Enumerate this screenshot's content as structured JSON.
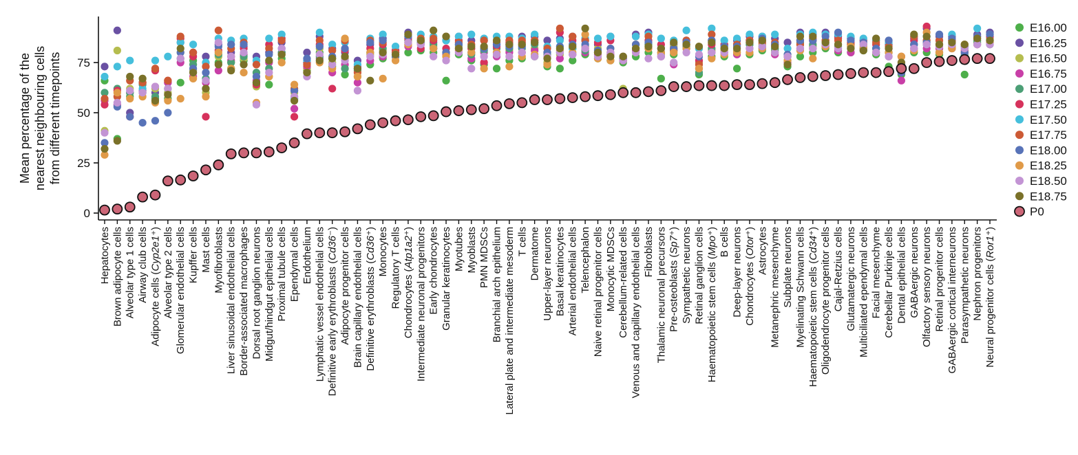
{
  "chart_data": {
    "type": "scatter",
    "ylabel_lines": [
      "Mean percentage of the",
      "nearest neighbouring cells",
      "from different timepoints"
    ],
    "xlabel": "",
    "ylim": [
      0,
      95
    ],
    "yticks": [
      0,
      25,
      50,
      75
    ],
    "grid": false,
    "legend_position": "right",
    "categories": [
      {
        "name": "Hepatocytes"
      },
      {
        "name": "Brown adipocyte cells"
      },
      {
        "name": "Alveolar type 1 cells"
      },
      {
        "name": "Airway club cells"
      },
      {
        "name": "Adipocyte cells (",
        "italic": "Cyp2e1",
        "suffix": "⁺)"
      },
      {
        "name": "Alveolar type 2 cells"
      },
      {
        "name": "Glomerular endothelial cells"
      },
      {
        "name": "Kupffer cells"
      },
      {
        "name": "Mast cells"
      },
      {
        "name": "Myofibroblasts"
      },
      {
        "name": "Liver sinusoidal endothelial cells"
      },
      {
        "name": "Border-associated macrophages"
      },
      {
        "name": "Dorsal root ganglion neurons"
      },
      {
        "name": "Midgut/hindgut epithelial cells"
      },
      {
        "name": "Proximal tubule cells"
      },
      {
        "name": "Ependymal cells"
      },
      {
        "name": "Endothelium"
      },
      {
        "name": "Lymphatic vessel endothelial cells"
      },
      {
        "name": "Definitive early erythroblasts (",
        "italic": "Cd36",
        "suffix": "⁻)"
      },
      {
        "name": "Adipocyte progenitor cells"
      },
      {
        "name": "Brain capillary endothelial cells"
      },
      {
        "name": "Definitive erythroblasts (",
        "italic": "Cd36",
        "suffix": "⁺)"
      },
      {
        "name": "Monocytes"
      },
      {
        "name": "Regulatory T cells"
      },
      {
        "name": "Chondrocytes (",
        "italic": "Atp1a2",
        "suffix": "⁺)"
      },
      {
        "name": "Intermediate neuronal progenitors"
      },
      {
        "name": "Early chondrocytes"
      },
      {
        "name": "Granular keratinocytes"
      },
      {
        "name": "Myotubes"
      },
      {
        "name": "Myoblasts"
      },
      {
        "name": "PMN MDSCs"
      },
      {
        "name": "Branchial arch epithelium"
      },
      {
        "name": "Lateral plate and intermediate mesoderm"
      },
      {
        "name": "T cells"
      },
      {
        "name": "Dermatome"
      },
      {
        "name": "Upper-layer neurons"
      },
      {
        "name": "Basal keratinocytes"
      },
      {
        "name": "Arterial endothelial cells"
      },
      {
        "name": "Telencephalon"
      },
      {
        "name": "Naive retinal progenitor cells"
      },
      {
        "name": "Monocytic MDSCs"
      },
      {
        "name": "Cerebellum-related cells"
      },
      {
        "name": "Venous and capillary endothelial cells"
      },
      {
        "name": "Fibroblasts"
      },
      {
        "name": "Thalamic neuronal precursors"
      },
      {
        "name": "Pre-osteoblasts (",
        "italic": "Sp7",
        "suffix": "⁺)"
      },
      {
        "name": "Sympathetic neurons"
      },
      {
        "name": "Retinal ganglion cells"
      },
      {
        "name": "Haematopoietic stem cells (",
        "italic": "Mpo",
        "suffix": "⁺)"
      },
      {
        "name": "B cells"
      },
      {
        "name": "Deep-layer neurons"
      },
      {
        "name": "Chondrocytes (",
        "italic": "Otor",
        "suffix": "⁺)"
      },
      {
        "name": "Astrocytes"
      },
      {
        "name": "Metanephric mesenchyme"
      },
      {
        "name": "Subplate neurons"
      },
      {
        "name": "Myelinating Schwann cells"
      },
      {
        "name": "Haematopoietic stem cells (",
        "italic": "Cd34",
        "suffix": "⁺)"
      },
      {
        "name": "Oligodendrocyte progenitor cells"
      },
      {
        "name": "Cajal-Retzius cells"
      },
      {
        "name": "Glutamatergic neurons"
      },
      {
        "name": "Multiciliated ependymal cells"
      },
      {
        "name": "Facial mesenchyme"
      },
      {
        "name": "Cerebellar Purkinje cells"
      },
      {
        "name": "Dental epithelial cells"
      },
      {
        "name": "GABAergic neurons"
      },
      {
        "name": "Olfactory sensory neurons"
      },
      {
        "name": "Retinal progenitor cells"
      },
      {
        "name": "GABAergic cortical interneurons"
      },
      {
        "name": "Parasympathetic neurons"
      },
      {
        "name": "Nephron progenitors"
      },
      {
        "name": "Neural progenitor cells (",
        "italic": "Ror1",
        "suffix": "⁺)"
      }
    ],
    "p0_values": [
      1.5,
      2,
      3,
      8,
      9,
      16,
      16.5,
      18.5,
      21.5,
      24,
      29.5,
      30,
      30,
      30.5,
      32.5,
      35,
      39.5,
      40,
      40,
      40.5,
      42,
      44,
      45,
      46,
      46.5,
      48,
      48.5,
      50.5,
      51,
      51.5,
      52,
      53.5,
      54.5,
      55,
      56.5,
      56.5,
      57,
      57.5,
      58,
      58.5,
      59,
      60,
      60,
      60.5,
      61,
      63,
      63,
      63.5,
      63.5,
      63.5,
      64,
      64,
      64.5,
      65,
      66.5,
      67.5,
      68,
      68.5,
      69,
      69.5,
      70,
      70,
      70.5,
      72,
      72,
      75,
      75.5,
      76,
      76.5,
      77,
      77
    ],
    "series": [
      {
        "name": "E16.00",
        "color": "#4daf4a"
      },
      {
        "name": "E16.25",
        "color": "#6a51a3"
      },
      {
        "name": "E16.50",
        "color": "#b5bd4f"
      },
      {
        "name": "E16.75",
        "color": "#c83fa7"
      },
      {
        "name": "E17.00",
        "color": "#4c9f76"
      },
      {
        "name": "E17.25",
        "color": "#d6325c"
      },
      {
        "name": "E17.50",
        "color": "#45bfdc"
      },
      {
        "name": "E17.75",
        "color": "#cc5a35"
      },
      {
        "name": "E18.00",
        "color": "#5873b8"
      },
      {
        "name": "E18.25",
        "color": "#e09a48"
      },
      {
        "name": "E18.50",
        "color": "#c394d4"
      },
      {
        "name": "E18.75",
        "color": "#7a7129"
      },
      {
        "name": "P0",
        "color": "#cc6677"
      }
    ],
    "timepoint_values": [
      [
        66,
        73,
        41,
        56,
        60,
        54,
        68,
        57,
        35,
        29,
        40,
        32
      ],
      [
        37,
        91,
        81,
        54,
        62,
        61,
        73,
        58,
        53,
        60,
        55,
        36
      ],
      [
        58,
        50,
        62,
        60,
        60,
        48,
        76,
        66,
        48,
        57,
        61,
        68
      ],
      [
        65,
        60,
        67,
        61,
        64,
        65,
        62,
        65,
        45,
        58,
        60,
        67
      ],
      [
        57,
        60,
        62,
        63,
        58,
        71,
        76,
        72,
        46,
        55,
        63,
        56
      ],
      [
        57,
        65,
        60,
        65,
        62,
        66,
        78,
        66,
        50,
        56,
        62,
        59
      ],
      [
        65,
        85,
        80,
        75,
        77,
        87,
        85,
        88,
        80,
        57,
        77,
        82
      ],
      [
        76,
        80,
        71,
        68,
        74,
        78,
        84,
        80,
        72,
        67,
        70,
        70
      ],
      [
        62,
        78,
        60,
        65,
        67,
        48,
        75,
        73,
        70,
        58,
        66,
        62
      ],
      [
        75,
        84,
        78,
        71,
        79,
        81,
        87,
        91,
        83,
        80,
        85,
        74
      ],
      [
        72,
        80,
        75,
        76,
        75,
        78,
        86,
        82,
        84,
        72,
        78,
        71
      ],
      [
        76,
        83,
        77,
        79,
        78,
        82,
        87,
        85,
        84,
        70,
        80,
        74
      ],
      [
        65,
        78,
        63,
        66,
        70,
        64,
        76,
        74,
        68,
        55,
        54,
        65
      ],
      [
        64,
        80,
        68,
        75,
        72,
        84,
        87,
        82,
        79,
        68,
        70,
        76
      ],
      [
        77,
        85,
        79,
        80,
        80,
        87,
        89,
        86,
        82,
        75,
        82,
        79
      ],
      [
        57,
        61,
        60,
        52,
        58,
        48,
        57,
        62,
        61,
        64,
        58,
        56
      ],
      [
        71,
        80,
        72,
        73,
        75,
        75,
        76,
        74,
        77,
        70,
        68,
        70
      ],
      [
        80,
        88,
        82,
        77,
        78,
        84,
        90,
        86,
        83,
        75,
        79,
        76
      ],
      [
        73,
        82,
        75,
        70,
        77,
        62,
        84,
        81,
        78,
        72,
        74,
        77
      ],
      [
        69,
        80,
        77,
        74,
        72,
        81,
        85,
        86,
        82,
        87,
        76,
        78
      ],
      [
        72,
        76,
        68,
        65,
        71,
        73,
        74,
        70,
        72,
        68,
        61,
        72
      ],
      [
        74,
        84,
        79,
        76,
        80,
        82,
        87,
        86,
        85,
        80,
        78,
        66
      ],
      [
        77,
        87,
        81,
        78,
        82,
        84,
        89,
        85,
        86,
        67,
        79,
        80
      ],
      [
        78,
        81,
        79,
        80,
        80,
        81,
        83,
        80,
        78,
        76,
        79,
        79
      ],
      [
        80,
        90,
        84,
        83,
        86,
        87,
        88,
        85,
        88,
        84,
        85,
        89
      ],
      [
        81,
        85,
        85,
        84,
        86,
        82,
        89,
        87,
        85,
        86,
        84,
        86
      ],
      [
        80,
        85,
        83,
        82,
        84,
        86,
        88,
        87,
        82,
        82,
        78,
        91
      ],
      [
        66,
        86,
        80,
        79,
        80,
        82,
        86,
        88,
        80,
        78,
        76,
        88
      ],
      [
        79,
        88,
        83,
        82,
        84,
        86,
        88,
        85,
        84,
        81,
        80,
        82
      ],
      [
        76,
        86,
        82,
        77,
        79,
        82,
        89,
        84,
        80,
        80,
        72,
        83
      ],
      [
        74,
        86,
        82,
        80,
        81,
        75,
        87,
        86,
        82,
        72,
        78,
        83
      ],
      [
        72,
        84,
        80,
        78,
        82,
        83,
        88,
        85,
        84,
        80,
        79,
        86
      ],
      [
        76,
        84,
        81,
        80,
        82,
        85,
        88,
        86,
        83,
        73,
        78,
        84
      ],
      [
        77,
        88,
        84,
        80,
        82,
        85,
        87,
        86,
        83,
        78,
        80,
        84
      ],
      [
        78,
        88,
        82,
        81,
        84,
        86,
        89,
        86,
        85,
        79,
        78,
        85
      ],
      [
        73,
        86,
        75,
        78,
        79,
        80,
        83,
        82,
        80,
        74,
        78,
        77
      ],
      [
        72,
        87,
        79,
        77,
        80,
        90,
        86,
        92,
        83,
        81,
        80,
        82
      ],
      [
        76,
        88,
        82,
        79,
        82,
        86,
        82,
        88,
        84,
        80,
        79,
        83
      ],
      [
        79,
        86,
        83,
        80,
        81,
        82,
        87,
        86,
        84,
        89,
        82,
        92
      ],
      [
        77,
        84,
        82,
        79,
        80,
        85,
        87,
        80,
        81,
        77,
        78,
        80
      ],
      [
        76,
        88,
        80,
        79,
        78,
        86,
        88,
        82,
        82,
        76,
        80,
        78
      ],
      [
        75,
        78,
        62,
        77,
        77,
        76,
        78,
        76,
        77,
        78,
        76,
        78
      ],
      [
        78,
        89,
        82,
        81,
        82,
        88,
        88,
        84,
        84,
        80,
        80,
        82
      ],
      [
        80,
        90,
        84,
        82,
        84,
        86,
        89,
        88,
        85,
        82,
        77,
        83
      ],
      [
        67,
        82,
        79,
        78,
        80,
        84,
        87,
        80,
        82,
        80,
        78,
        82
      ],
      [
        79,
        84,
        83,
        74,
        81,
        82,
        86,
        81,
        82,
        80,
        75,
        85
      ],
      [
        82,
        86,
        84,
        82,
        83,
        84,
        91,
        86,
        85,
        82,
        80,
        84
      ],
      [
        69,
        82,
        75,
        72,
        70,
        76,
        82,
        74,
        78,
        72,
        79,
        83
      ],
      [
        78,
        86,
        81,
        80,
        82,
        84,
        92,
        89,
        86,
        77,
        80,
        85
      ],
      [
        78,
        84,
        81,
        80,
        82,
        84,
        86,
        82,
        83,
        79,
        80,
        82
      ],
      [
        72,
        86,
        81,
        79,
        80,
        84,
        87,
        84,
        83,
        80,
        82,
        82
      ],
      [
        79,
        88,
        84,
        82,
        84,
        86,
        89,
        86,
        85,
        80,
        82,
        85
      ],
      [
        81,
        88,
        84,
        82,
        83,
        86,
        88,
        85,
        87,
        82,
        83,
        86
      ],
      [
        81,
        87,
        82,
        79,
        82,
        84,
        89,
        85,
        84,
        80,
        80,
        83
      ],
      [
        73,
        85,
        79,
        75,
        76,
        78,
        82,
        78,
        79,
        76,
        78,
        74
      ],
      [
        78,
        90,
        84,
        82,
        85,
        86,
        89,
        84,
        86,
        81,
        82,
        88
      ],
      [
        80,
        89,
        83,
        82,
        84,
        86,
        90,
        87,
        86,
        77,
        82,
        88
      ],
      [
        82,
        90,
        85,
        83,
        84,
        86,
        89,
        86,
        88,
        83,
        84,
        85
      ],
      [
        80,
        88,
        84,
        81,
        83,
        87,
        89,
        86,
        90,
        82,
        82,
        84
      ],
      [
        80,
        87,
        83,
        80,
        84,
        85,
        88,
        84,
        86,
        83,
        82,
        82
      ],
      [
        81,
        86,
        83,
        82,
        82,
        86,
        87,
        84,
        85,
        82,
        84,
        81
      ],
      [
        79,
        86,
        82,
        80,
        82,
        84,
        86,
        85,
        82,
        80,
        80,
        87
      ],
      [
        73,
        84,
        80,
        78,
        80,
        82,
        85,
        83,
        86,
        80,
        78,
        82
      ],
      [
        69,
        74,
        73,
        66,
        70,
        70,
        72,
        78,
        70,
        78,
        73,
        75
      ],
      [
        80,
        87,
        84,
        82,
        84,
        86,
        88,
        88,
        84,
        81,
        82,
        89
      ],
      [
        80,
        92,
        86,
        82,
        84,
        93,
        88,
        86,
        85,
        90,
        84,
        88
      ],
      [
        79,
        88,
        82,
        82,
        80,
        84,
        86,
        86,
        89,
        80,
        83,
        84
      ],
      [
        82,
        88,
        83,
        82,
        84,
        86,
        89,
        86,
        87,
        82,
        84,
        85
      ],
      [
        69,
        83,
        80,
        80,
        79,
        81,
        82,
        84,
        80,
        84,
        82,
        84
      ],
      [
        85,
        89,
        86,
        84,
        86,
        88,
        92,
        87,
        88,
        84,
        84,
        87
      ],
      [
        84,
        90,
        87,
        85,
        86,
        88,
        89,
        86,
        89,
        85,
        84,
        86
      ]
    ]
  }
}
